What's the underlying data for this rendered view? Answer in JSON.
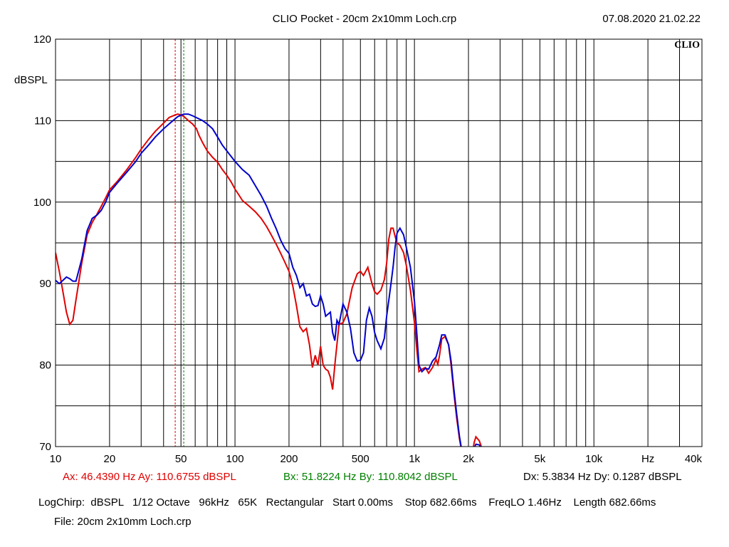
{
  "header": {
    "title": "CLIO Pocket - 20cm 2x10mm Loch.crp",
    "datetime": "07.08.2020 21.02.22",
    "logo": "CLIO"
  },
  "cursors": {
    "a": {
      "label": "Ax: 46.4390 Hz  Ay: 110.6755 dBSPL",
      "x": 46.439,
      "color": "#e00000"
    },
    "b": {
      "label": "Bx: 51.8224 Hz  By: 110.8042 dBSPL",
      "x": 51.8224,
      "color": "#008000"
    },
    "delta": "Dx: 5.3834 Hz  Dy: 0.1287 dBSPL"
  },
  "settings_line": "LogChirp:  dBSPL   1/12 Octave   96kHz   65K   Rectangular   Start 0.00ms    Stop 682.66ms    FreqLO 1.46Hz    Length 682.66ms",
  "file_line": "File: 20cm 2x10mm Loch.crp",
  "chart_data": {
    "type": "line",
    "xscale": "log",
    "xlim": [
      10,
      40000
    ],
    "ylim": [
      70,
      120
    ],
    "ylabel": "dBSPL",
    "xunit_label": "Hz",
    "grid": true,
    "yticks": [
      {
        "v": 120,
        "label": "120"
      },
      {
        "v": 110,
        "label": "110"
      },
      {
        "v": 100,
        "label": "100"
      },
      {
        "v": 90,
        "label": "90"
      },
      {
        "v": 80,
        "label": "80"
      },
      {
        "v": 70,
        "label": "70"
      }
    ],
    "xticks": [
      {
        "v": 10,
        "label": "10"
      },
      {
        "v": 20,
        "label": "20"
      },
      {
        "v": 50,
        "label": "50"
      },
      {
        "v": 100,
        "label": "100"
      },
      {
        "v": 200,
        "label": "200"
      },
      {
        "v": 500,
        "label": "500"
      },
      {
        "v": 1000,
        "label": "1k"
      },
      {
        "v": 2000,
        "label": "2k"
      },
      {
        "v": 5000,
        "label": "5k"
      },
      {
        "v": 10000,
        "label": "10k"
      },
      {
        "v": 40000,
        "label": "40k"
      }
    ],
    "series": [
      {
        "color": "#e00000",
        "points": [
          [
            10,
            93.8
          ],
          [
            10.5,
            91.5
          ],
          [
            11,
            89
          ],
          [
            11.5,
            86.5
          ],
          [
            12,
            85
          ],
          [
            12.5,
            85.5
          ],
          [
            13,
            88
          ],
          [
            14,
            92.5
          ],
          [
            15,
            96
          ],
          [
            16,
            97.5
          ],
          [
            17,
            98.5
          ],
          [
            18,
            99.5
          ],
          [
            19,
            100.5
          ],
          [
            20,
            101.5
          ],
          [
            22,
            102.5
          ],
          [
            25,
            104
          ],
          [
            28,
            105.5
          ],
          [
            30,
            106.5
          ],
          [
            33,
            107.7
          ],
          [
            36,
            108.7
          ],
          [
            40,
            109.7
          ],
          [
            43,
            110.4
          ],
          [
            46.4,
            110.7
          ],
          [
            48,
            110.8
          ],
          [
            50,
            110.7
          ],
          [
            52,
            110.5
          ],
          [
            55,
            110
          ],
          [
            58,
            109.6
          ],
          [
            61,
            109
          ],
          [
            63,
            108.2
          ],
          [
            66,
            107.3
          ],
          [
            70,
            106.3
          ],
          [
            75,
            105.5
          ],
          [
            80,
            104.9
          ],
          [
            85,
            104
          ],
          [
            90,
            103.3
          ],
          [
            95,
            102.5
          ],
          [
            100,
            101.6
          ],
          [
            105,
            100.9
          ],
          [
            110,
            100.2
          ],
          [
            120,
            99.5
          ],
          [
            130,
            98.8
          ],
          [
            140,
            98
          ],
          [
            150,
            97
          ],
          [
            160,
            95.9
          ],
          [
            170,
            94.8
          ],
          [
            180,
            93.7
          ],
          [
            190,
            92.6
          ],
          [
            200,
            91.5
          ],
          [
            210,
            89.7
          ],
          [
            220,
            87.3
          ],
          [
            230,
            84.7
          ],
          [
            240,
            84.1
          ],
          [
            250,
            84.5
          ],
          [
            260,
            82.5
          ],
          [
            270,
            79.7
          ],
          [
            280,
            81.2
          ],
          [
            290,
            80
          ],
          [
            300,
            82.3
          ],
          [
            310,
            80
          ],
          [
            320,
            79.5
          ],
          [
            330,
            79.3
          ],
          [
            340,
            78.5
          ],
          [
            350,
            77
          ],
          [
            360,
            80
          ],
          [
            380,
            85
          ],
          [
            400,
            85.2
          ],
          [
            420,
            86.3
          ],
          [
            450,
            89.5
          ],
          [
            480,
            91.2
          ],
          [
            500,
            91.5
          ],
          [
            520,
            91
          ],
          [
            550,
            92
          ],
          [
            580,
            90
          ],
          [
            600,
            89
          ],
          [
            620,
            88.7
          ],
          [
            650,
            89.2
          ],
          [
            680,
            90.5
          ],
          [
            700,
            92.5
          ],
          [
            720,
            95.5
          ],
          [
            740,
            96.8
          ],
          [
            760,
            96.8
          ],
          [
            780,
            95.8
          ],
          [
            800,
            95
          ],
          [
            830,
            94.7
          ],
          [
            870,
            93.8
          ],
          [
            900,
            92.3
          ],
          [
            950,
            89.2
          ],
          [
            1000,
            85.2
          ],
          [
            1030,
            82
          ],
          [
            1060,
            79.2
          ],
          [
            1100,
            79.5
          ],
          [
            1150,
            79.7
          ],
          [
            1200,
            79
          ],
          [
            1260,
            79.7
          ],
          [
            1320,
            80.7
          ],
          [
            1350,
            80.1
          ],
          [
            1380,
            81.2
          ],
          [
            1420,
            83.2
          ],
          [
            1480,
            83.5
          ],
          [
            1550,
            82.5
          ],
          [
            1600,
            80
          ],
          [
            1660,
            76.5
          ],
          [
            1720,
            73.5
          ],
          [
            1780,
            71
          ],
          [
            1830,
            69.5
          ],
          [
            1900,
            69
          ],
          [
            2100,
            69
          ],
          [
            2150,
            70.5
          ],
          [
            2200,
            71.2
          ],
          [
            2300,
            70.7
          ],
          [
            2400,
            69.5
          ]
        ]
      },
      {
        "color": "#0000cc",
        "points": [
          [
            10,
            90.4
          ],
          [
            10.5,
            90
          ],
          [
            11,
            90.4
          ],
          [
            11.5,
            90.8
          ],
          [
            12,
            90.6
          ],
          [
            12.5,
            90.3
          ],
          [
            13,
            90.3
          ],
          [
            14,
            93
          ],
          [
            15,
            96.5
          ],
          [
            16,
            98
          ],
          [
            17,
            98.4
          ],
          [
            18,
            99
          ],
          [
            19,
            100
          ],
          [
            20,
            101.2
          ],
          [
            22,
            102.3
          ],
          [
            25,
            103.7
          ],
          [
            28,
            105
          ],
          [
            30,
            106
          ],
          [
            33,
            107
          ],
          [
            36,
            108
          ],
          [
            40,
            109
          ],
          [
            44,
            109.8
          ],
          [
            48,
            110.5
          ],
          [
            51.8,
            110.8
          ],
          [
            55,
            110.8
          ],
          [
            58,
            110.6
          ],
          [
            62,
            110.3
          ],
          [
            66,
            110
          ],
          [
            70,
            109.6
          ],
          [
            75,
            109
          ],
          [
            80,
            108
          ],
          [
            85,
            107
          ],
          [
            90,
            106.3
          ],
          [
            100,
            105
          ],
          [
            110,
            104
          ],
          [
            120,
            103.3
          ],
          [
            130,
            102
          ],
          [
            140,
            100.8
          ],
          [
            150,
            99.5
          ],
          [
            160,
            98
          ],
          [
            170,
            96.7
          ],
          [
            180,
            95.3
          ],
          [
            190,
            94.3
          ],
          [
            200,
            93.7
          ],
          [
            210,
            92
          ],
          [
            220,
            91
          ],
          [
            230,
            89.5
          ],
          [
            240,
            90
          ],
          [
            250,
            88.5
          ],
          [
            260,
            88.7
          ],
          [
            270,
            87.5
          ],
          [
            280,
            87.2
          ],
          [
            290,
            87.3
          ],
          [
            300,
            88.5
          ],
          [
            310,
            87.5
          ],
          [
            320,
            86
          ],
          [
            340,
            86.5
          ],
          [
            350,
            84
          ],
          [
            360,
            83
          ],
          [
            370,
            85.5
          ],
          [
            380,
            85
          ],
          [
            400,
            87.5
          ],
          [
            420,
            86.5
          ],
          [
            440,
            84.5
          ],
          [
            460,
            81.5
          ],
          [
            480,
            80.5
          ],
          [
            500,
            80.6
          ],
          [
            520,
            81.5
          ],
          [
            540,
            85.5
          ],
          [
            560,
            87
          ],
          [
            580,
            86
          ],
          [
            600,
            84
          ],
          [
            620,
            83
          ],
          [
            650,
            82
          ],
          [
            680,
            83.3
          ],
          [
            700,
            86
          ],
          [
            720,
            88
          ],
          [
            740,
            90
          ],
          [
            760,
            92
          ],
          [
            780,
            94.5
          ],
          [
            800,
            96.2
          ],
          [
            830,
            96.8
          ],
          [
            870,
            96
          ],
          [
            900,
            94.5
          ],
          [
            950,
            92
          ],
          [
            1000,
            87.8
          ],
          [
            1030,
            84
          ],
          [
            1060,
            80
          ],
          [
            1100,
            79.2
          ],
          [
            1150,
            79.6
          ],
          [
            1200,
            79.5
          ],
          [
            1260,
            80.5
          ],
          [
            1320,
            81
          ],
          [
            1380,
            82.5
          ],
          [
            1420,
            83.7
          ],
          [
            1480,
            83.7
          ],
          [
            1550,
            82.5
          ],
          [
            1600,
            80.5
          ],
          [
            1660,
            77
          ],
          [
            1720,
            74
          ],
          [
            1780,
            71.3
          ],
          [
            1830,
            69.7
          ],
          [
            1900,
            69
          ],
          [
            2100,
            69
          ],
          [
            2150,
            69.8
          ],
          [
            2200,
            70.3
          ],
          [
            2300,
            70.2
          ],
          [
            2400,
            69.5
          ]
        ]
      }
    ]
  }
}
